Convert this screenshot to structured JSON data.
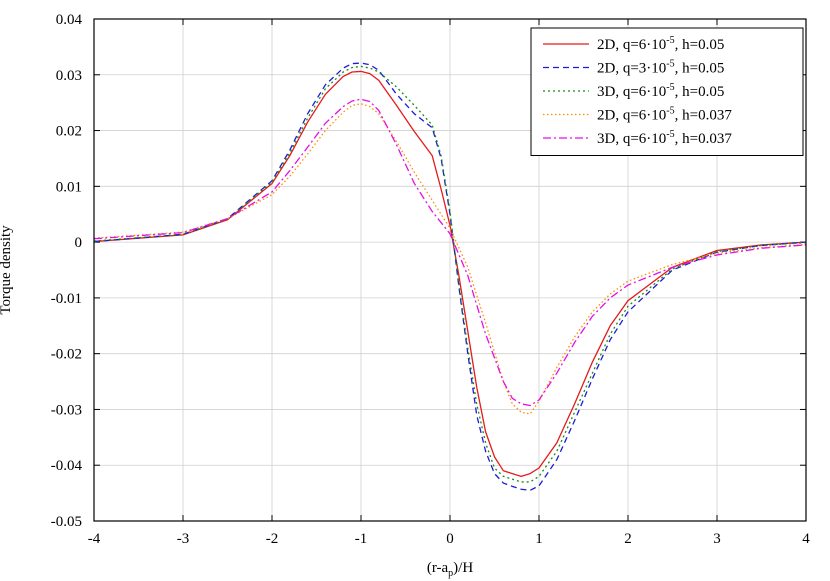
{
  "chart_data": {
    "type": "line",
    "xlabel": "(r-aₚ)/H",
    "xlabel_parts": {
      "main": "(r-a",
      "sub": "p",
      "tail": ")/H"
    },
    "ylabel": "Torque density",
    "xlim": [
      -4,
      4
    ],
    "ylim": [
      -0.05,
      0.04
    ],
    "grid": true,
    "legend_position": "top-right",
    "x_ticks": [
      "-4",
      "-3",
      "-2",
      "-1",
      "0",
      "1",
      "2",
      "3",
      "4"
    ],
    "y_ticks": [
      "-0.05",
      "-0.04",
      "-0.03",
      "-0.02",
      "-0.01",
      "0",
      "0.01",
      "0.02",
      "0.03",
      "0.04"
    ],
    "series": [
      {
        "name": "2D, q=6·10⁻⁵, h=0.05",
        "label_parts": {
          "pre": "2D, q=6·10",
          "sup": "-5",
          "post": ", h=0.05"
        },
        "color": "#e41a1c",
        "dash": "",
        "x": [
          -4,
          -3,
          -2.5,
          -2,
          -1.8,
          -1.6,
          -1.4,
          -1.2,
          -1.1,
          -1.0,
          -0.9,
          -0.8,
          -0.6,
          -0.4,
          -0.2,
          -0.1,
          0,
          0.1,
          0.2,
          0.3,
          0.4,
          0.5,
          0.6,
          0.7,
          0.8,
          0.9,
          1.0,
          1.2,
          1.4,
          1.6,
          1.8,
          2.0,
          2.5,
          3.0,
          3.5,
          4.0
        ],
        "y": [
          0.0001,
          0.0013,
          0.004,
          0.0105,
          0.0155,
          0.0215,
          0.0265,
          0.0297,
          0.0305,
          0.0306,
          0.0302,
          0.029,
          0.0245,
          0.0198,
          0.0155,
          0.0095,
          0.003,
          -0.006,
          -0.016,
          -0.026,
          -0.034,
          -0.0385,
          -0.041,
          -0.0415,
          -0.042,
          -0.0415,
          -0.0405,
          -0.036,
          -0.029,
          -0.0215,
          -0.015,
          -0.0105,
          -0.0045,
          -0.0015,
          -0.0005,
          0.0
        ]
      },
      {
        "name": "2D, q=3·10⁻⁵, h=0.05",
        "label_parts": {
          "pre": "2D, q=3·10",
          "sup": "-5",
          "post": ", h=0.05"
        },
        "color": "#1c1cd6",
        "dash": "6,4",
        "x": [
          -4,
          -3,
          -2.5,
          -2,
          -1.8,
          -1.6,
          -1.4,
          -1.2,
          -1.1,
          -1.0,
          -0.9,
          -0.8,
          -0.6,
          -0.4,
          -0.2,
          -0.1,
          0,
          0.1,
          0.2,
          0.3,
          0.4,
          0.5,
          0.6,
          0.7,
          0.8,
          0.9,
          1.0,
          1.2,
          1.4,
          1.6,
          1.8,
          2.0,
          2.5,
          3.0,
          3.5,
          4.0
        ],
        "y": [
          0.0001,
          0.0014,
          0.0042,
          0.011,
          0.0165,
          0.023,
          0.0282,
          0.0312,
          0.032,
          0.0321,
          0.0318,
          0.0308,
          0.0265,
          0.023,
          0.0205,
          0.015,
          0.005,
          -0.008,
          -0.02,
          -0.031,
          -0.0375,
          -0.0415,
          -0.0432,
          -0.0438,
          -0.0443,
          -0.0445,
          -0.0437,
          -0.039,
          -0.032,
          -0.0245,
          -0.0175,
          -0.0125,
          -0.005,
          -0.0018,
          -0.0006,
          0.0
        ]
      },
      {
        "name": "3D, q=6·10⁻⁵, h=0.05",
        "label_parts": {
          "pre": "3D, q=6·10",
          "sup": "-5",
          "post": ", h=0.05"
        },
        "color": "#1a8a1a",
        "dash": "2,3",
        "x": [
          -4,
          -3,
          -2.5,
          -2,
          -1.8,
          -1.6,
          -1.4,
          -1.2,
          -1.1,
          -1.0,
          -0.9,
          -0.8,
          -0.6,
          -0.4,
          -0.2,
          -0.1,
          0,
          0.1,
          0.2,
          0.3,
          0.4,
          0.5,
          0.6,
          0.7,
          0.8,
          0.9,
          1.0,
          1.2,
          1.4,
          1.6,
          1.8,
          2.0,
          2.5,
          3.0,
          3.5,
          4.0
        ],
        "y": [
          0.0002,
          0.0014,
          0.0041,
          0.0108,
          0.016,
          0.0222,
          0.0275,
          0.0305,
          0.0313,
          0.0315,
          0.0312,
          0.0305,
          0.0278,
          0.0245,
          0.021,
          0.0155,
          0.0055,
          -0.0075,
          -0.019,
          -0.029,
          -0.036,
          -0.0405,
          -0.042,
          -0.0425,
          -0.043,
          -0.043,
          -0.042,
          -0.0375,
          -0.0305,
          -0.0235,
          -0.0165,
          -0.0115,
          -0.0048,
          -0.0017,
          -0.0006,
          -0.0001
        ]
      },
      {
        "name": "2D, q=6·10⁻⁵, h=0.037",
        "label_parts": {
          "pre": "2D, q=6·10",
          "sup": "-5",
          "post": ", h=0.037"
        },
        "color": "#ff8c00",
        "dash": "1.5,2.5",
        "x": [
          -4,
          -3,
          -2.5,
          -2,
          -1.8,
          -1.6,
          -1.4,
          -1.2,
          -1.1,
          -1.0,
          -0.9,
          -0.8,
          -0.6,
          -0.4,
          -0.2,
          0,
          0.2,
          0.4,
          0.6,
          0.7,
          0.8,
          0.9,
          1.0,
          1.2,
          1.4,
          1.6,
          1.8,
          2.0,
          2.5,
          3.0,
          3.5,
          4.0
        ],
        "y": [
          0.0007,
          0.0018,
          0.0042,
          0.0085,
          0.0118,
          0.0158,
          0.02,
          0.0233,
          0.0245,
          0.0248,
          0.0243,
          0.023,
          0.018,
          0.0125,
          0.0075,
          0.0025,
          -0.0045,
          -0.0145,
          -0.025,
          -0.029,
          -0.0305,
          -0.0308,
          -0.0285,
          -0.0225,
          -0.017,
          -0.0125,
          -0.0093,
          -0.007,
          -0.004,
          -0.002,
          -0.001,
          -0.0004
        ]
      },
      {
        "name": "3D, q=6·10⁻⁵, h=0.037",
        "label_parts": {
          "pre": "3D, q=6·10",
          "sup": "-5",
          "post": ", h=0.037"
        },
        "color": "#e60fe6",
        "dash": "8,3,2,3",
        "x": [
          -4,
          -3,
          -2.5,
          -2,
          -1.8,
          -1.6,
          -1.4,
          -1.2,
          -1.1,
          -1.0,
          -0.9,
          -0.8,
          -0.6,
          -0.4,
          -0.2,
          0,
          0.2,
          0.4,
          0.6,
          0.7,
          0.8,
          0.9,
          1.0,
          1.2,
          1.4,
          1.6,
          1.8,
          2.0,
          2.5,
          3.0,
          3.5,
          4.0
        ],
        "y": [
          0.0006,
          0.0017,
          0.0042,
          0.009,
          0.0128,
          0.017,
          0.0213,
          0.0243,
          0.0253,
          0.0256,
          0.0252,
          0.0236,
          0.0174,
          0.0105,
          0.0055,
          0.0015,
          -0.006,
          -0.0165,
          -0.025,
          -0.028,
          -0.029,
          -0.0293,
          -0.0283,
          -0.0235,
          -0.018,
          -0.0133,
          -0.01,
          -0.0077,
          -0.0045,
          -0.0023,
          -0.0011,
          -0.0005
        ]
      }
    ]
  }
}
